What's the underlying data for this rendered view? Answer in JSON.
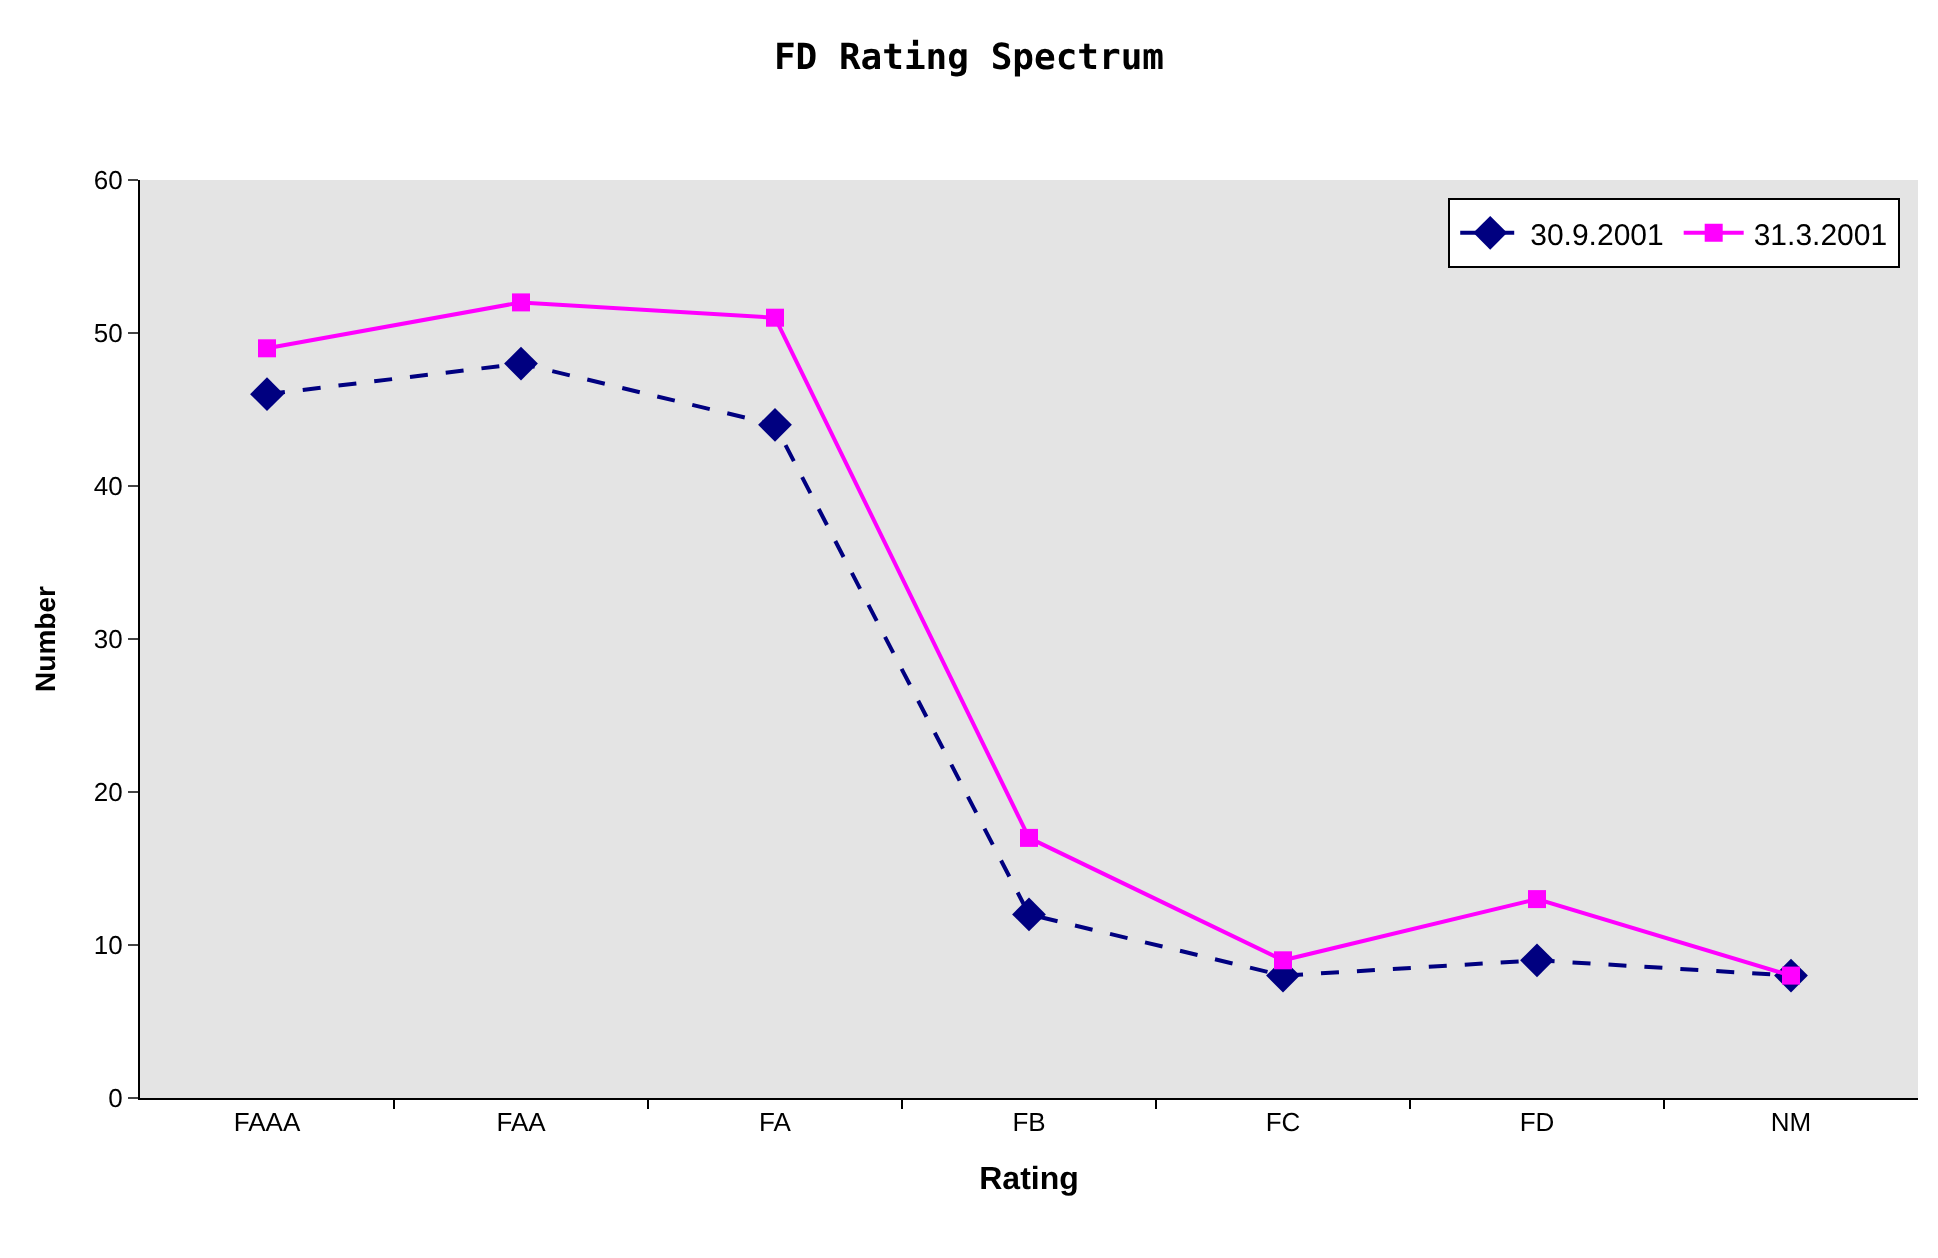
{
  "chart_data": {
    "type": "line",
    "title": "FD Rating Spectrum",
    "xlabel": "Rating",
    "ylabel": "Number",
    "categories": [
      "FAAA",
      "FAA",
      "FA",
      "FB",
      "FC",
      "FD",
      "NM"
    ],
    "series": [
      {
        "name": "30.9.2001",
        "color": "#000080",
        "values": [
          46,
          48,
          44,
          12,
          8,
          9,
          8
        ],
        "marker": "diamond",
        "line_style": "dashed"
      },
      {
        "name": "31.3.2001",
        "color": "#ff00ff",
        "values": [
          49,
          52,
          51,
          17,
          9,
          13,
          8
        ],
        "marker": "square",
        "line_style": "solid"
      }
    ],
    "ylim": [
      0,
      60
    ],
    "yticks": [
      0,
      10,
      20,
      30,
      40,
      50,
      60
    ],
    "grid": false,
    "legend": "top right"
  }
}
